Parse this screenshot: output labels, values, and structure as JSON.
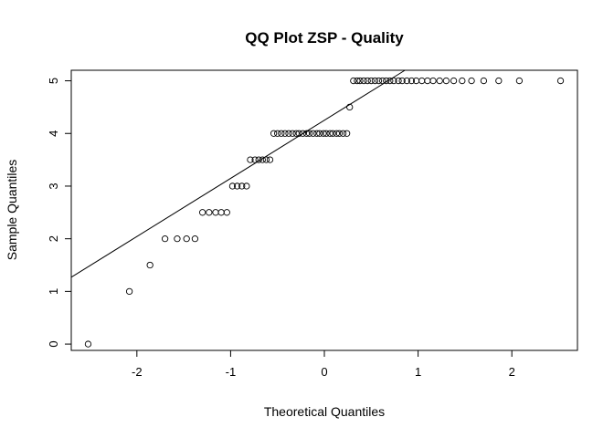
{
  "chart_data": {
    "type": "scatter",
    "title": "QQ Plot ZSP - Quality",
    "xlabel": "Theoretical Quantiles",
    "ylabel": "Sample Quantiles",
    "xlim": [
      -2.7,
      2.7
    ],
    "ylim": [
      -0.12,
      5.2
    ],
    "xticks": [
      -2,
      -1,
      0,
      1,
      2
    ],
    "yticks": [
      0,
      1,
      2,
      3,
      4,
      5
    ],
    "grid": false,
    "legend": "none",
    "reference_line": {
      "x": [
        -2.7,
        0.86
      ],
      "y": [
        1.27,
        5.2
      ]
    },
    "points": [
      {
        "x": -2.52,
        "y": 0.0
      },
      {
        "x": -2.08,
        "y": 1.0
      },
      {
        "x": -1.86,
        "y": 1.5
      },
      {
        "x": -1.7,
        "y": 2.0
      },
      {
        "x": -1.57,
        "y": 2.0
      },
      {
        "x": -1.47,
        "y": 2.0
      },
      {
        "x": -1.38,
        "y": 2.0
      },
      {
        "x": -1.3,
        "y": 2.5
      },
      {
        "x": -1.23,
        "y": 2.5
      },
      {
        "x": -1.16,
        "y": 2.5
      },
      {
        "x": -1.1,
        "y": 2.5
      },
      {
        "x": -1.04,
        "y": 2.5
      },
      {
        "x": -0.98,
        "y": 3.0
      },
      {
        "x": -0.93,
        "y": 3.0
      },
      {
        "x": -0.88,
        "y": 3.0
      },
      {
        "x": -0.83,
        "y": 3.0
      },
      {
        "x": -0.79,
        "y": 3.5
      },
      {
        "x": -0.74,
        "y": 3.5
      },
      {
        "x": -0.7,
        "y": 3.5
      },
      {
        "x": -0.66,
        "y": 3.5
      },
      {
        "x": -0.62,
        "y": 3.5
      },
      {
        "x": -0.58,
        "y": 3.5
      },
      {
        "x": -0.54,
        "y": 4.0
      },
      {
        "x": -0.5,
        "y": 4.0
      },
      {
        "x": -0.46,
        "y": 4.0
      },
      {
        "x": -0.42,
        "y": 4.0
      },
      {
        "x": -0.38,
        "y": 4.0
      },
      {
        "x": -0.34,
        "y": 4.0
      },
      {
        "x": -0.3,
        "y": 4.0
      },
      {
        "x": -0.27,
        "y": 4.0
      },
      {
        "x": -0.23,
        "y": 4.0
      },
      {
        "x": -0.19,
        "y": 4.0
      },
      {
        "x": -0.16,
        "y": 4.0
      },
      {
        "x": -0.12,
        "y": 4.0
      },
      {
        "x": -0.08,
        "y": 4.0
      },
      {
        "x": -0.05,
        "y": 4.0
      },
      {
        "x": -0.01,
        "y": 4.0
      },
      {
        "x": 0.02,
        "y": 4.0
      },
      {
        "x": 0.06,
        "y": 4.0
      },
      {
        "x": 0.09,
        "y": 4.0
      },
      {
        "x": 0.13,
        "y": 4.0
      },
      {
        "x": 0.16,
        "y": 4.0
      },
      {
        "x": 0.2,
        "y": 4.0
      },
      {
        "x": 0.24,
        "y": 4.0
      },
      {
        "x": 0.27,
        "y": 4.5
      },
      {
        "x": 0.31,
        "y": 5.0
      },
      {
        "x": 0.35,
        "y": 5.0
      },
      {
        "x": 0.38,
        "y": 5.0
      },
      {
        "x": 0.42,
        "y": 5.0
      },
      {
        "x": 0.46,
        "y": 5.0
      },
      {
        "x": 0.5,
        "y": 5.0
      },
      {
        "x": 0.54,
        "y": 5.0
      },
      {
        "x": 0.58,
        "y": 5.0
      },
      {
        "x": 0.62,
        "y": 5.0
      },
      {
        "x": 0.66,
        "y": 5.0
      },
      {
        "x": 0.7,
        "y": 5.0
      },
      {
        "x": 0.74,
        "y": 5.0
      },
      {
        "x": 0.79,
        "y": 5.0
      },
      {
        "x": 0.83,
        "y": 5.0
      },
      {
        "x": 0.88,
        "y": 5.0
      },
      {
        "x": 0.93,
        "y": 5.0
      },
      {
        "x": 0.98,
        "y": 5.0
      },
      {
        "x": 1.04,
        "y": 5.0
      },
      {
        "x": 1.1,
        "y": 5.0
      },
      {
        "x": 1.16,
        "y": 5.0
      },
      {
        "x": 1.23,
        "y": 5.0
      },
      {
        "x": 1.3,
        "y": 5.0
      },
      {
        "x": 1.38,
        "y": 5.0
      },
      {
        "x": 1.47,
        "y": 5.0
      },
      {
        "x": 1.57,
        "y": 5.0
      },
      {
        "x": 1.7,
        "y": 5.0
      },
      {
        "x": 1.86,
        "y": 5.0
      },
      {
        "x": 2.08,
        "y": 5.0
      },
      {
        "x": 2.52,
        "y": 5.0
      }
    ]
  }
}
